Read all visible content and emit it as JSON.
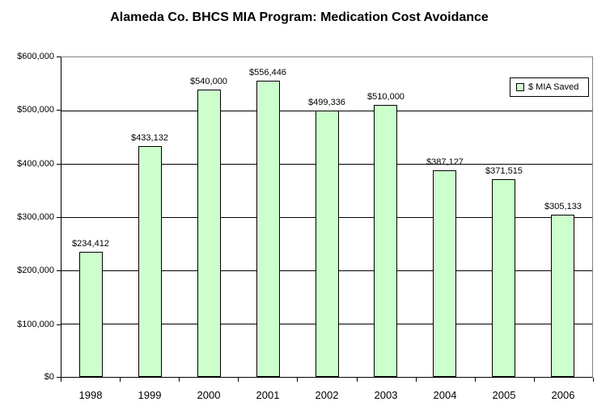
{
  "chart_data": {
    "type": "bar",
    "title": "Alameda Co. BHCS MIA Program: Medication Cost Avoidance",
    "categories": [
      "1998",
      "1999",
      "2000",
      "2001",
      "2002",
      "2003",
      "2004",
      "2005",
      "2006"
    ],
    "values": [
      234412,
      433132,
      540000,
      556446,
      499336,
      510000,
      387127,
      371515,
      305133
    ],
    "value_labels": [
      "$234,412",
      "$433,132",
      "$540,000",
      "$556,446",
      "$499,336",
      "$510,000",
      "$387,127",
      "$371,515",
      "$305,133"
    ],
    "xlabel": "",
    "ylabel": "",
    "ylim": [
      0,
      600000
    ],
    "ytick_step": 100000,
    "ytick_labels": [
      "$0",
      "$100,000",
      "$200,000",
      "$300,000",
      "$400,000",
      "$500,000",
      "$600,000"
    ],
    "grid": true,
    "legend": {
      "label": "$ MIA Saved",
      "position": "top-right-inside"
    },
    "colors": {
      "bar_fill": "#CCFFCC",
      "bar_border": "#000000",
      "gridline": "#000000",
      "axis": "#000000",
      "plot_border": "#808080",
      "background": "#FFFFFF",
      "text": "#000000"
    }
  }
}
